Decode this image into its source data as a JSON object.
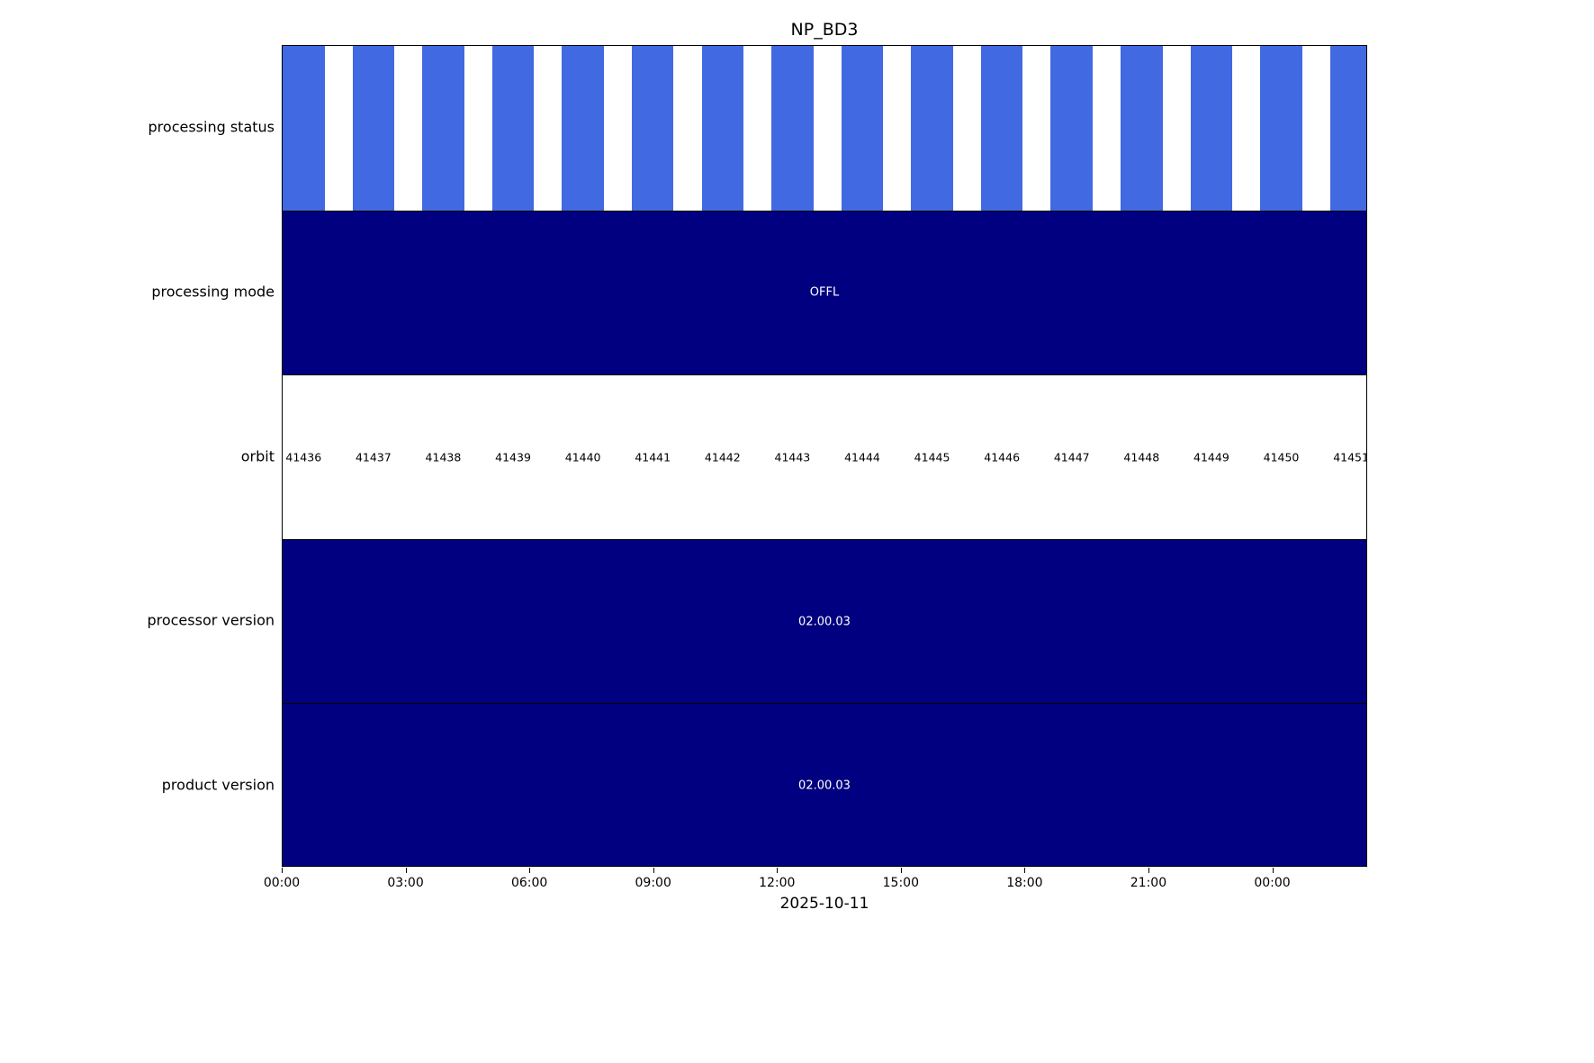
{
  "chart_data": {
    "type": "timeline",
    "title": "NP_BD3",
    "xlabel": "2025-10-11",
    "x_range_hours": [
      0,
      26.3
    ],
    "orbit_slot_hours": 1.692,
    "bar_fraction": 0.6,
    "grid": false,
    "legend": "none",
    "colors": {
      "bar_blue": "#4169e1",
      "navy": "#000080",
      "white": "#ffffff",
      "black": "#000000"
    },
    "x_ticks": [
      {
        "label": "00:00",
        "hour": 0
      },
      {
        "label": "03:00",
        "hour": 3
      },
      {
        "label": "06:00",
        "hour": 6
      },
      {
        "label": "09:00",
        "hour": 9
      },
      {
        "label": "12:00",
        "hour": 12
      },
      {
        "label": "15:00",
        "hour": 15
      },
      {
        "label": "18:00",
        "hour": 18
      },
      {
        "label": "21:00",
        "hour": 21
      },
      {
        "label": "00:00",
        "hour": 24
      }
    ],
    "rows": [
      {
        "key": "processing-status",
        "label": "processing status",
        "type": "bars",
        "bg": "#ffffff",
        "bar_color": "#4169e1"
      },
      {
        "key": "processing-mode",
        "label": "processing mode",
        "type": "solid",
        "bg": "#000080",
        "text": "OFFL",
        "text_color": "#ffffff"
      },
      {
        "key": "orbit",
        "label": "orbit",
        "type": "orbit-labels",
        "bg": "#ffffff",
        "text_color": "#000000"
      },
      {
        "key": "processor-version",
        "label": "processor version",
        "type": "solid",
        "bg": "#000080",
        "text": "02.00.03",
        "text_color": "#ffffff"
      },
      {
        "key": "product-version",
        "label": "product version",
        "type": "solid",
        "bg": "#000080",
        "text": "02.00.03",
        "text_color": "#ffffff"
      }
    ],
    "orbits": [
      "41436",
      "41437",
      "41438",
      "41439",
      "41440",
      "41441",
      "41442",
      "41443",
      "41444",
      "41445",
      "41446",
      "41447",
      "41448",
      "41449",
      "41450",
      "41451"
    ]
  }
}
